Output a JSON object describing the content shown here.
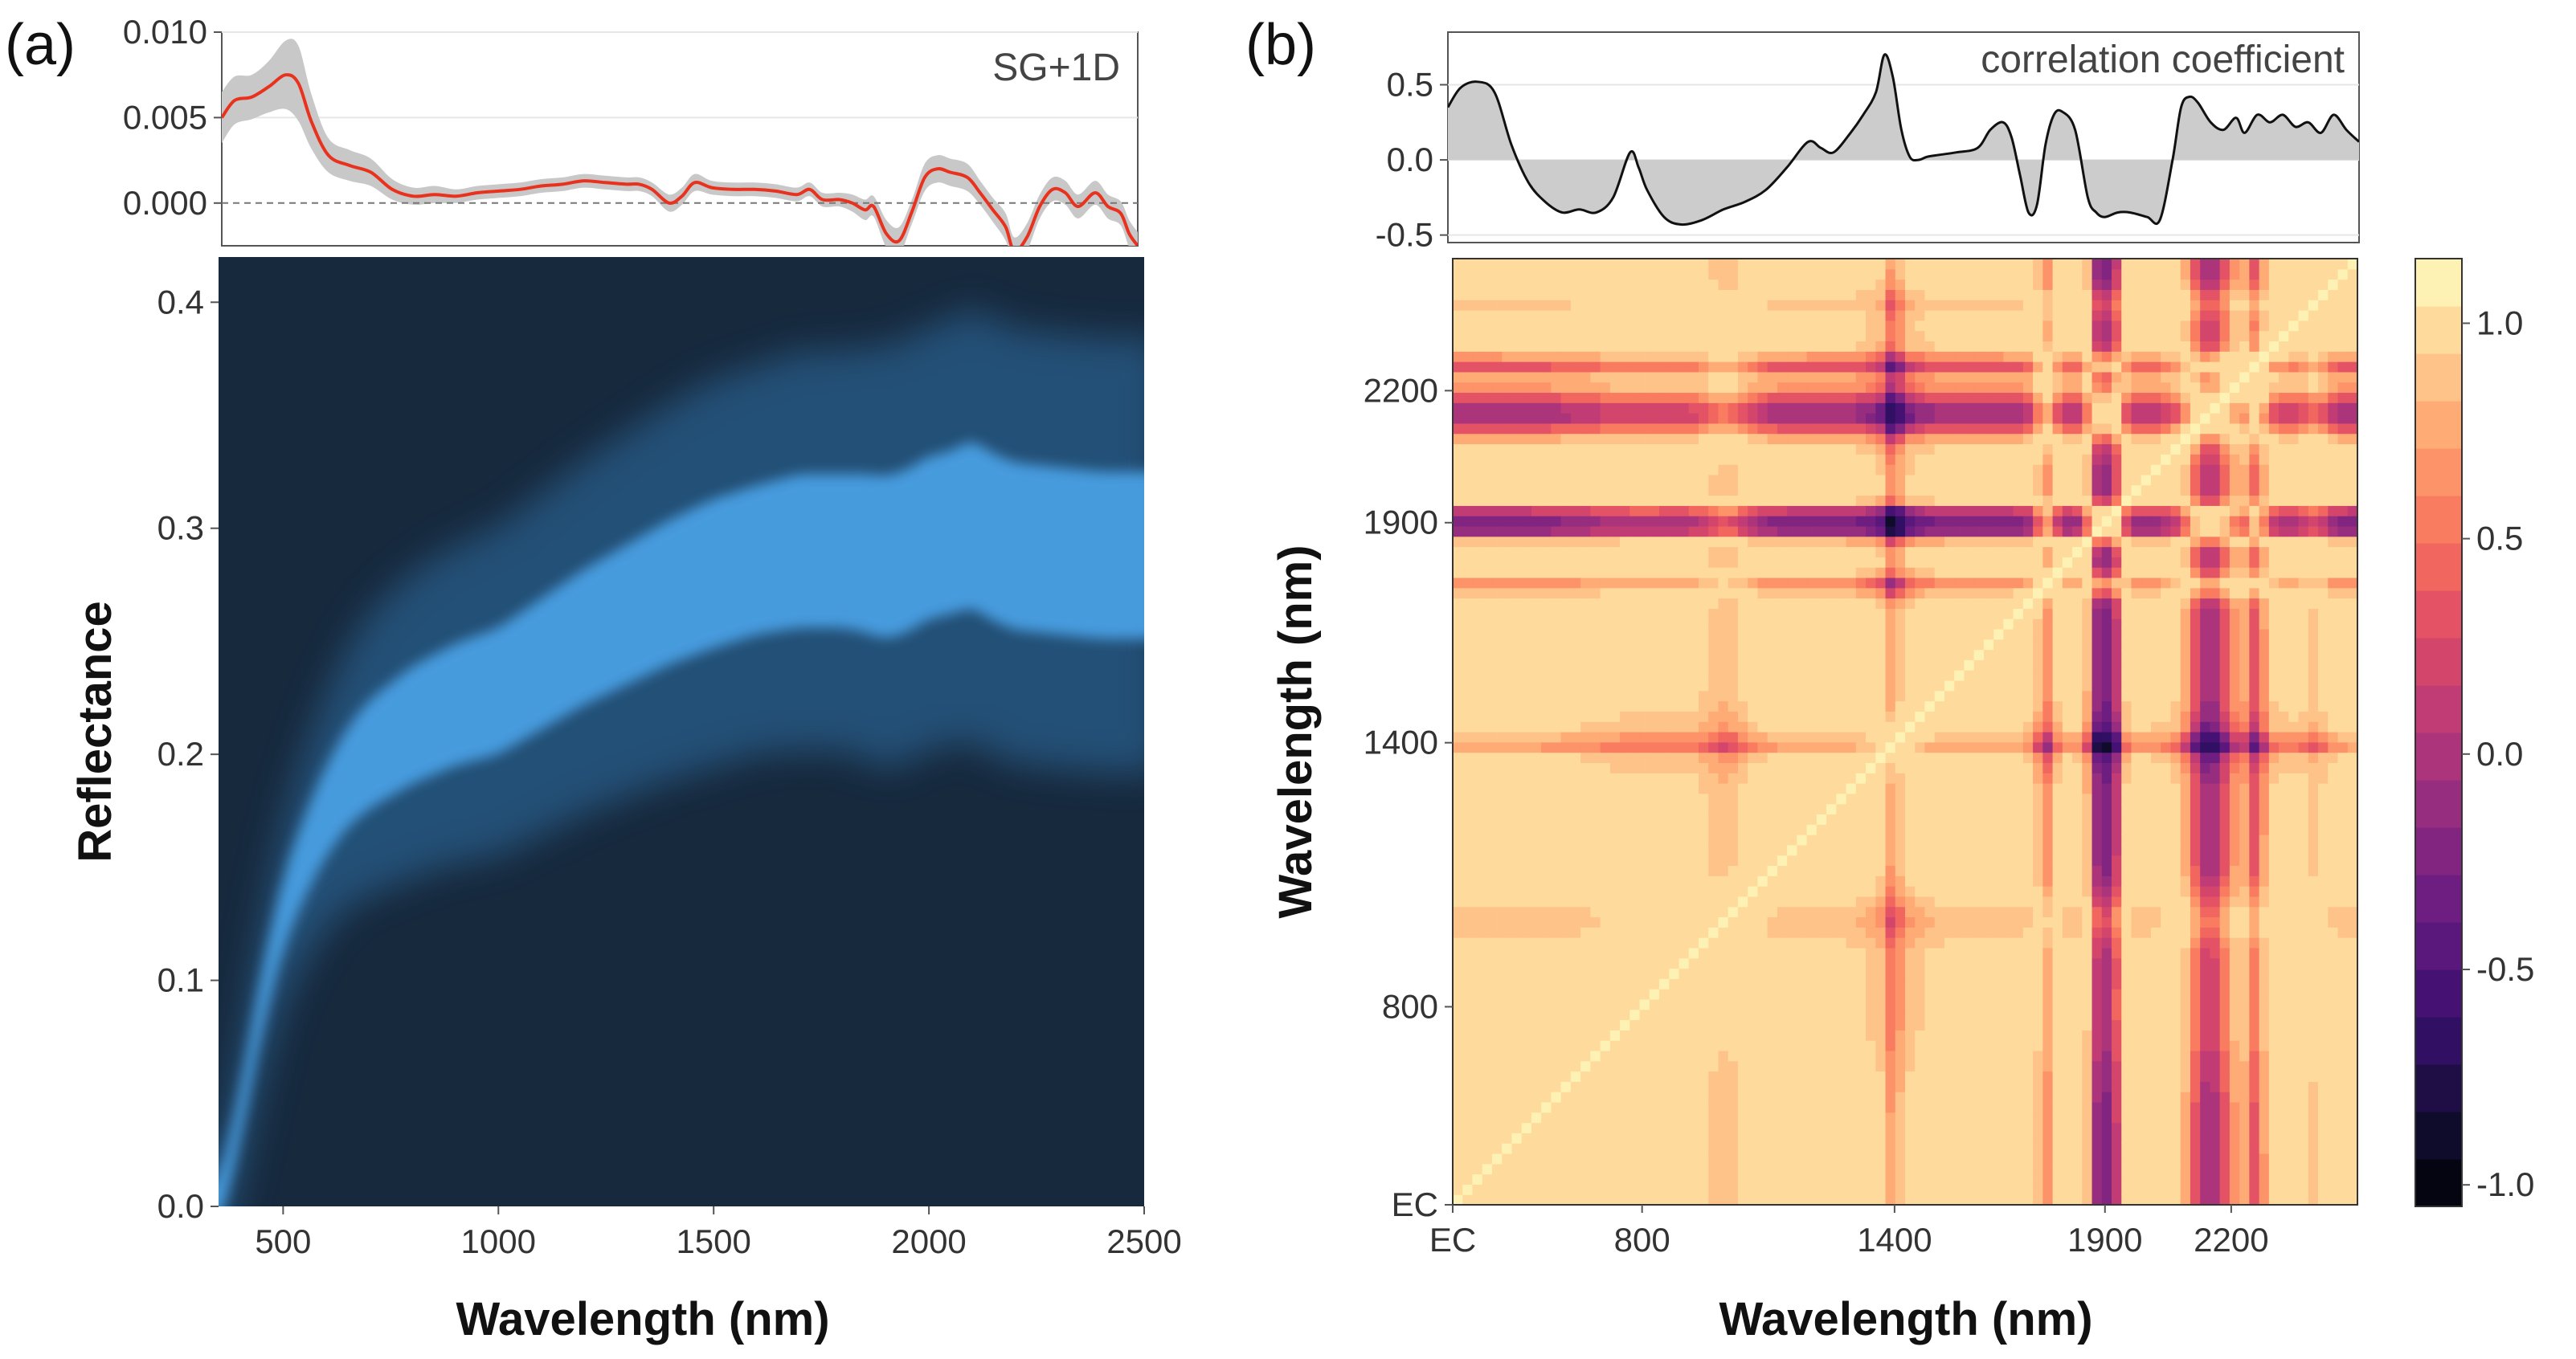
{
  "chart_data": [
    {
      "id": "a-top",
      "panel_label": "(a)",
      "type": "line",
      "annotation": "SG+1D",
      "xlim": [
        350,
        2500
      ],
      "ylim": [
        -0.0025,
        0.01
      ],
      "yticks": [
        0.0,
        0.005,
        0.01
      ],
      "ytick_labels": [
        "0.000",
        "0.005",
        "0.010"
      ],
      "zero_line": "dashed",
      "series": [
        {
          "name": "mean",
          "color": "#e8321e",
          "x": [
            350,
            380,
            420,
            460,
            500,
            530,
            560,
            600,
            650,
            700,
            750,
            800,
            850,
            900,
            950,
            1000,
            1050,
            1100,
            1150,
            1200,
            1250,
            1300,
            1330,
            1360,
            1400,
            1430,
            1460,
            1500,
            1550,
            1600,
            1650,
            1700,
            1730,
            1760,
            1800,
            1830,
            1860,
            1880,
            1910,
            1940,
            1970,
            2000,
            2030,
            2060,
            2100,
            2130,
            2160,
            2190,
            2210,
            2240,
            2270,
            2300,
            2330,
            2360,
            2400,
            2430,
            2460,
            2480,
            2500
          ],
          "y": [
            0.005,
            0.006,
            0.0062,
            0.0068,
            0.0075,
            0.007,
            0.0048,
            0.0028,
            0.0022,
            0.0018,
            0.0008,
            0.0004,
            0.0005,
            0.0004,
            0.0006,
            0.0007,
            0.0008,
            0.001,
            0.0011,
            0.0013,
            0.0012,
            0.0011,
            0.0011,
            0.0008,
            0.0,
            0.0004,
            0.0012,
            0.0009,
            0.0008,
            0.0008,
            0.0007,
            0.0005,
            0.0008,
            0.0002,
            0.0002,
            0.0,
            -0.0004,
            -0.0002,
            -0.0018,
            -0.0022,
            -0.0005,
            0.0015,
            0.002,
            0.0018,
            0.0015,
            0.0006,
            -0.0004,
            -0.0014,
            -0.0028,
            -0.002,
            -0.0002,
            0.0008,
            0.0006,
            -0.0002,
            0.0006,
            -0.0002,
            -0.0006,
            -0.0018,
            -0.0025
          ],
          "band": [
            0.0015,
            0.0014,
            0.0013,
            0.0015,
            0.002,
            0.0022,
            0.0016,
            0.001,
            0.0009,
            0.0008,
            0.0006,
            0.0005,
            0.0005,
            0.0004,
            0.0004,
            0.0004,
            0.0004,
            0.0004,
            0.0004,
            0.0004,
            0.0004,
            0.0004,
            0.0004,
            0.0004,
            0.0005,
            0.0005,
            0.0005,
            0.0004,
            0.0004,
            0.0004,
            0.0004,
            0.0004,
            0.0004,
            0.0004,
            0.0004,
            0.0005,
            0.0006,
            0.0006,
            0.0008,
            0.0008,
            0.0007,
            0.0008,
            0.0008,
            0.0008,
            0.0008,
            0.0007,
            0.0007,
            0.0008,
            0.0008,
            0.0008,
            0.0007,
            0.0007,
            0.0007,
            0.0007,
            0.0007,
            0.0007,
            0.0007,
            0.0008,
            0.0008
          ],
          "band_color": "#c8c8c8"
        }
      ]
    },
    {
      "id": "a-main",
      "type": "heatmap",
      "description_of_values": "density of reflectance spectra",
      "xlabel": "Wavelength (nm)",
      "ylabel": "Reflectance",
      "xlim": [
        350,
        2500
      ],
      "ylim": [
        0.0,
        0.42
      ],
      "xticks": [
        500,
        1000,
        1500,
        2000,
        2500
      ],
      "yticks": [
        0.0,
        0.1,
        0.2,
        0.3,
        0.4
      ],
      "ytick_labels": [
        "0.0",
        "0.1",
        "0.2",
        "0.3",
        "0.4"
      ],
      "background_color": "#17293d",
      "density_color": "#4da9f0",
      "center_line": {
        "x": [
          350,
          400,
          450,
          500,
          550,
          600,
          650,
          700,
          800,
          900,
          1000,
          1100,
          1200,
          1300,
          1400,
          1500,
          1600,
          1700,
          1800,
          1850,
          1900,
          1950,
          2000,
          2050,
          2100,
          2150,
          2200,
          2250,
          2300,
          2350,
          2400,
          2450,
          2500
        ],
        "y": [
          0.0,
          0.04,
          0.09,
          0.13,
          0.155,
          0.175,
          0.19,
          0.2,
          0.213,
          0.222,
          0.228,
          0.24,
          0.252,
          0.262,
          0.272,
          0.28,
          0.286,
          0.29,
          0.29,
          0.289,
          0.287,
          0.29,
          0.296,
          0.298,
          0.302,
          0.296,
          0.292,
          0.291,
          0.29,
          0.289,
          0.288,
          0.288,
          0.288
        ],
        "width": [
          0.01,
          0.012,
          0.014,
          0.016,
          0.018,
          0.02,
          0.022,
          0.024,
          0.026,
          0.027,
          0.028,
          0.029,
          0.03,
          0.031,
          0.032,
          0.033,
          0.033,
          0.034,
          0.034,
          0.035,
          0.036,
          0.036,
          0.036,
          0.036,
          0.037,
          0.037,
          0.037,
          0.037,
          0.037,
          0.037,
          0.037,
          0.037,
          0.037
        ]
      }
    },
    {
      "id": "b-top",
      "panel_label": "(b)",
      "type": "area",
      "annotation": "correlation coefficient",
      "xlim": [
        350,
        2500
      ],
      "ylim": [
        -0.55,
        0.85
      ],
      "yticks": [
        -0.5,
        0.0,
        0.5
      ],
      "ytick_labels": [
        "-0.5",
        "0.0",
        "0.5"
      ],
      "fill_color": "#cccccc",
      "line_color": "#111111",
      "series": [
        {
          "name": "correlation",
          "x": [
            350,
            380,
            420,
            460,
            500,
            540,
            580,
            620,
            660,
            700,
            740,
            780,
            800,
            820,
            860,
            900,
            950,
            1000,
            1050,
            1100,
            1150,
            1200,
            1230,
            1260,
            1300,
            1330,
            1360,
            1380,
            1400,
            1420,
            1440,
            1460,
            1480,
            1500,
            1550,
            1600,
            1630,
            1660,
            1680,
            1700,
            1720,
            1740,
            1760,
            1780,
            1800,
            1830,
            1860,
            1880,
            1900,
            1930,
            1960,
            2000,
            2030,
            2060,
            2080,
            2100,
            2120,
            2150,
            2180,
            2210,
            2230,
            2260,
            2290,
            2320,
            2350,
            2380,
            2410,
            2440,
            2470,
            2500
          ],
          "y": [
            0.35,
            0.48,
            0.52,
            0.45,
            0.1,
            -0.15,
            -0.28,
            -0.35,
            -0.33,
            -0.35,
            -0.25,
            0.05,
            -0.05,
            -0.2,
            -0.38,
            -0.43,
            -0.4,
            -0.33,
            -0.28,
            -0.2,
            -0.05,
            0.12,
            0.08,
            0.05,
            0.18,
            0.3,
            0.45,
            0.7,
            0.55,
            0.2,
            0.02,
            0.0,
            0.02,
            0.03,
            0.05,
            0.08,
            0.2,
            0.25,
            0.15,
            -0.1,
            -0.35,
            -0.3,
            0.1,
            0.3,
            0.32,
            0.2,
            -0.25,
            -0.35,
            -0.38,
            -0.35,
            -0.35,
            -0.38,
            -0.4,
            0.0,
            0.35,
            0.42,
            0.38,
            0.25,
            0.2,
            0.28,
            0.18,
            0.3,
            0.25,
            0.3,
            0.22,
            0.25,
            0.18,
            0.3,
            0.2,
            0.12
          ]
        }
      ]
    },
    {
      "id": "b-main",
      "type": "heatmap",
      "description_of_values": "correlation matrix between EC and spectral bands (symmetric, diagonal = 1)",
      "xlabel": "Wavelength (nm)",
      "ylabel": "Wavelength (nm)",
      "axis_labels": [
        "EC",
        "800",
        "1400",
        "1900",
        "2200"
      ],
      "axis_positions": [
        350,
        800,
        1400,
        1900,
        2200
      ],
      "axis_range": [
        350,
        2500
      ],
      "colorbar": {
        "ticks": [
          -1.0,
          -0.5,
          0.0,
          0.5,
          1.0
        ],
        "tick_labels": [
          "-1.0",
          "-0.5",
          "0.0",
          "0.5",
          "1.0"
        ],
        "range": [
          -1.05,
          1.15
        ],
        "levels": 20,
        "palette": [
          "#000004",
          "#140e36",
          "#3b0f70",
          "#641a80",
          "#8c2981",
          "#b73779",
          "#de4968",
          "#f7705c",
          "#fe9f6d",
          "#fecf92",
          "#fcfdbf"
        ]
      }
    }
  ]
}
